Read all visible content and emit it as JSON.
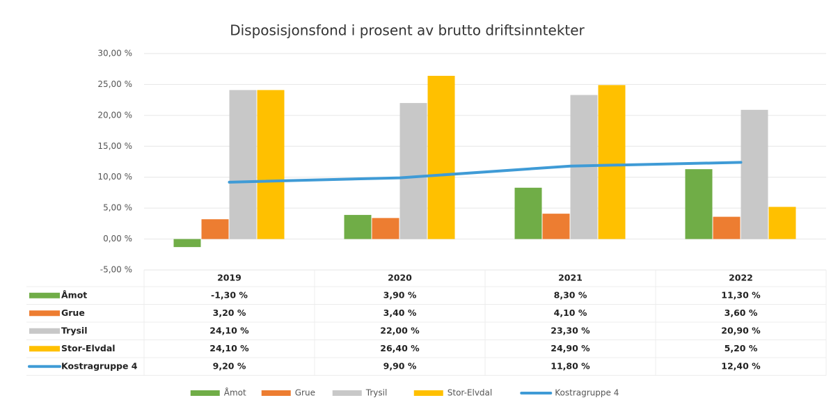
{
  "chart_data": {
    "type": "bar",
    "title": "Disposisjonsfond i prosent av brutto driftsinntekter",
    "categories": [
      "2019",
      "2020",
      "2021",
      "2022"
    ],
    "series": [
      {
        "name": "Åmot",
        "color": "#70ad47",
        "values": [
          -1.3,
          3.9,
          8.3,
          11.3
        ],
        "value_labels": [
          "-1,30 %",
          "3,90 %",
          "8,30 %",
          "11,30 %"
        ]
      },
      {
        "name": "Grue",
        "color": "#ed7d31",
        "values": [
          3.2,
          3.4,
          4.1,
          3.6
        ],
        "value_labels": [
          "3,20 %",
          "3,40 %",
          "4,10 %",
          "3,60 %"
        ]
      },
      {
        "name": "Trysil",
        "color": "#c8c8c8",
        "values": [
          24.1,
          22.0,
          23.3,
          20.9
        ],
        "value_labels": [
          "24,10 %",
          "22,00 %",
          "23,30 %",
          "20,90 %"
        ]
      },
      {
        "name": "Stor-Elvdal",
        "color": "#ffc000",
        "values": [
          24.1,
          26.4,
          24.9,
          5.2
        ],
        "value_labels": [
          "24,10 %",
          "26,40 %",
          "24,90 %",
          "5,20 %"
        ]
      },
      {
        "name": "Kostragruppe 4",
        "type": "line",
        "color": "#3f9bd6",
        "values": [
          9.2,
          9.9,
          11.8,
          12.4
        ],
        "value_labels": [
          "9,20 %",
          "9,90 %",
          "11,80 %",
          "12,40 %"
        ]
      }
    ],
    "ylim": [
      -5,
      30
    ],
    "yticks": [
      {
        "value": -5,
        "label": "-5,00 %"
      },
      {
        "value": 0,
        "label": "0,00 %"
      },
      {
        "value": 5,
        "label": "5,00 %"
      },
      {
        "value": 10,
        "label": "10,00 %"
      },
      {
        "value": 15,
        "label": "15,00 %"
      },
      {
        "value": 20,
        "label": "20,00 %"
      },
      {
        "value": 25,
        "label": "25,00 %"
      },
      {
        "value": 30,
        "label": "30,00 %"
      }
    ],
    "grid": true,
    "legend": "bottom"
  }
}
